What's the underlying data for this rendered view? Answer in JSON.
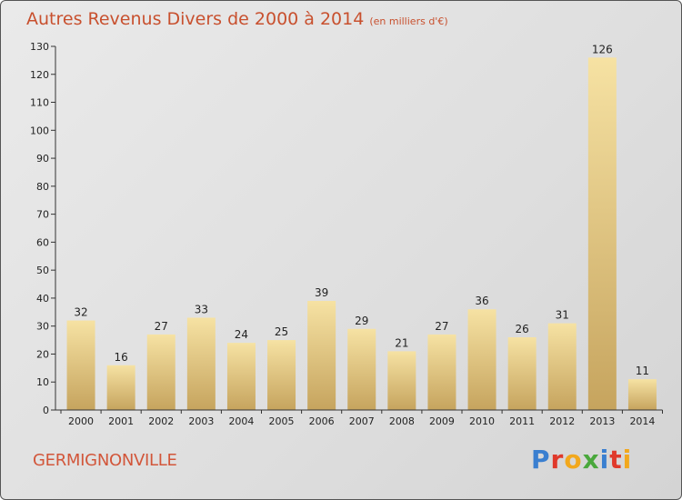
{
  "title": "Autres Revenus Divers de 2000 à 2014",
  "unit": "(en milliers d'€)",
  "city": "GERMIGNONVILLE",
  "logo_text": "Proxiti",
  "logo_colors": [
    "#3a7fd0",
    "#e0392b",
    "#f2a81d",
    "#4aa83c",
    "#3a7fd0",
    "#e0392b",
    "#f2a81d"
  ],
  "colors": {
    "title": "#c8502e",
    "bar_light": "#f3da96",
    "bar_dark": "#c7a85f",
    "axis": "#333333"
  },
  "chart_data": {
    "type": "bar",
    "categories": [
      "2000",
      "2001",
      "2002",
      "2003",
      "2004",
      "2005",
      "2006",
      "2007",
      "2008",
      "2009",
      "2010",
      "2011",
      "2012",
      "2013",
      "2014"
    ],
    "values": [
      32,
      16,
      27,
      33,
      24,
      25,
      39,
      29,
      21,
      27,
      36,
      26,
      31,
      126,
      11
    ],
    "ylim": [
      0,
      130
    ],
    "yticks": [
      0,
      10,
      20,
      30,
      40,
      50,
      60,
      70,
      80,
      90,
      100,
      110,
      120,
      130
    ],
    "grid": false,
    "legend": "none"
  }
}
